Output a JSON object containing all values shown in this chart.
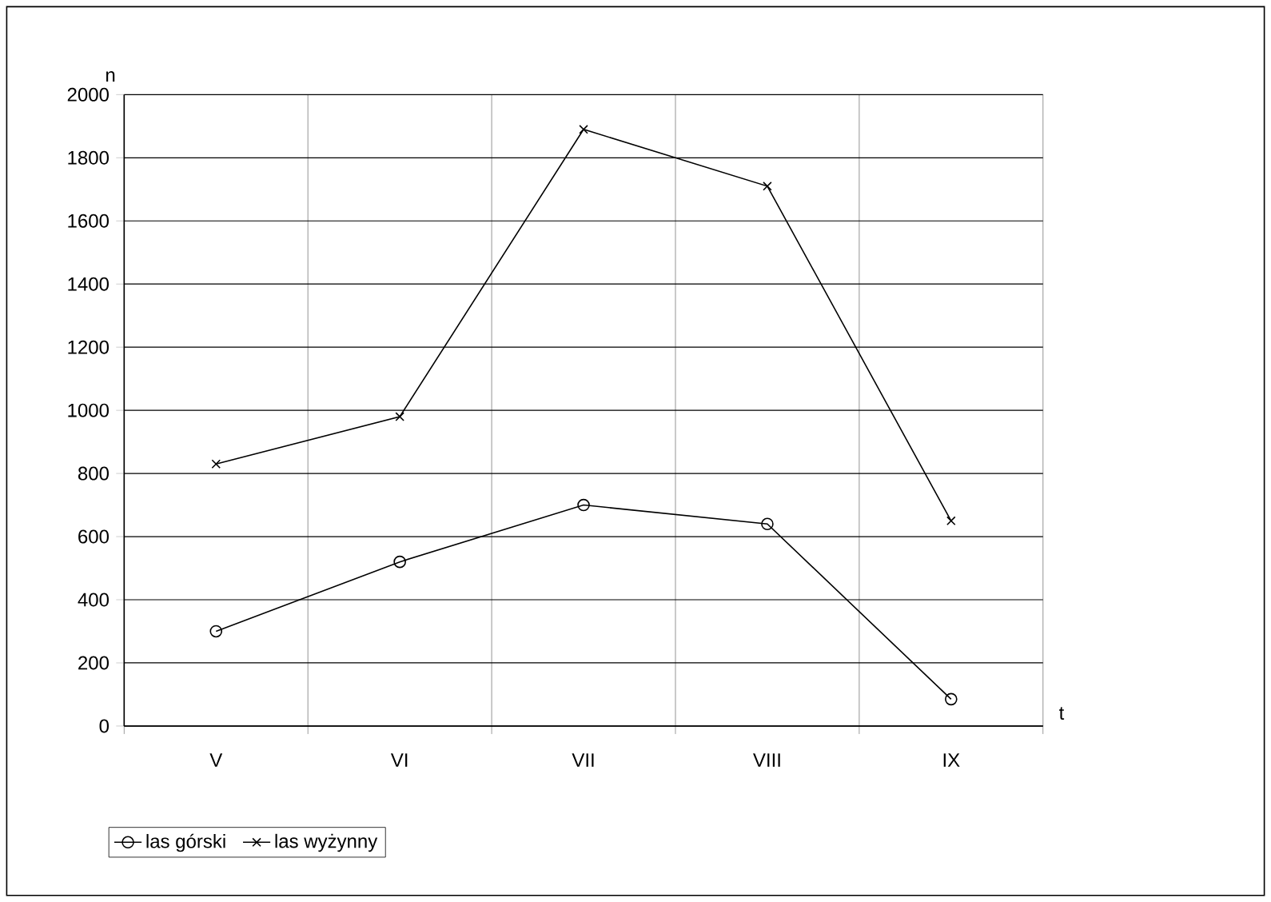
{
  "chart_data": {
    "type": "line",
    "xlabel": "t",
    "ylabel": "n",
    "categories": [
      "V",
      "VI",
      "VII",
      "VIII",
      "IX"
    ],
    "series": [
      {
        "name": "las górski",
        "color": "#000000",
        "marker": "circle",
        "values": [
          300,
          520,
          700,
          640,
          85
        ]
      },
      {
        "name": "las wyżynny",
        "color": "#000000",
        "marker": "cross",
        "values": [
          830,
          980,
          1890,
          1710,
          650
        ]
      }
    ],
    "ylim": [
      0,
      2000
    ],
    "yticks": [
      0,
      200,
      400,
      600,
      800,
      1000,
      1200,
      1400,
      1600,
      1800,
      2000
    ],
    "grid": true,
    "legend": "bottom",
    "line_style": "solid"
  }
}
